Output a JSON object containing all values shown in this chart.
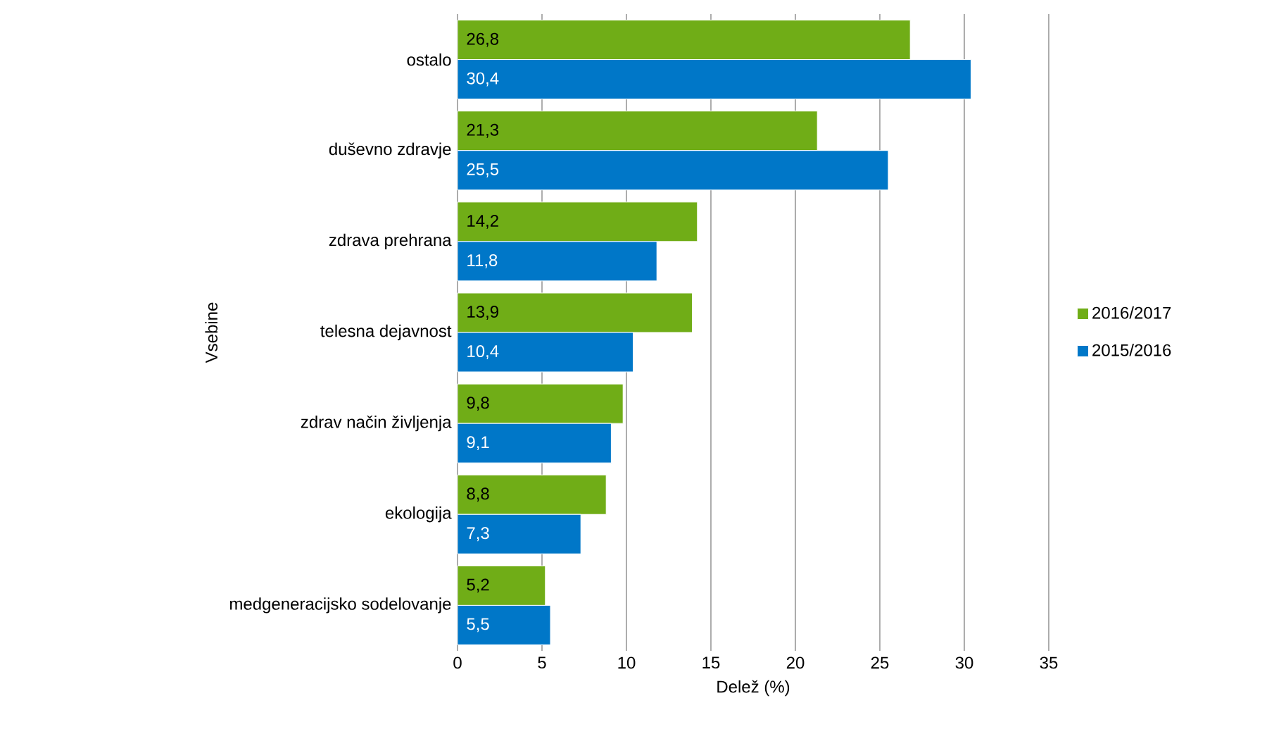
{
  "chart_data": {
    "type": "bar",
    "orientation": "horizontal",
    "xlabel": "Delež (%)",
    "ylabel": "Vsebine",
    "categories": [
      "ostalo",
      "duševno zdravje",
      "zdrava prehrana",
      "telesna dejavnost",
      "zdrav način življenja",
      "ekologija",
      "medgeneracijsko sodelovanje"
    ],
    "series": [
      {
        "name": "2016/2017",
        "color": "#70ad17",
        "values": [
          26.8,
          21.3,
          14.2,
          13.9,
          9.8,
          8.8,
          5.2
        ],
        "value_labels": [
          "26,8",
          "21,3",
          "14,2",
          "13,9",
          "9,8",
          "8,8",
          "5,2"
        ]
      },
      {
        "name": "2015/2016",
        "color": "#0077c8",
        "values": [
          30.4,
          25.5,
          11.8,
          10.4,
          9.1,
          7.3,
          5.5
        ],
        "value_labels": [
          "30,4",
          "25,5",
          "11,8",
          "10,4",
          "9,1",
          "7,3",
          "5,5"
        ]
      }
    ],
    "xlim": [
      0,
      35
    ],
    "xticks": [
      0,
      5,
      10,
      15,
      20,
      25,
      30,
      35
    ],
    "grid": "x",
    "legend": "right"
  }
}
